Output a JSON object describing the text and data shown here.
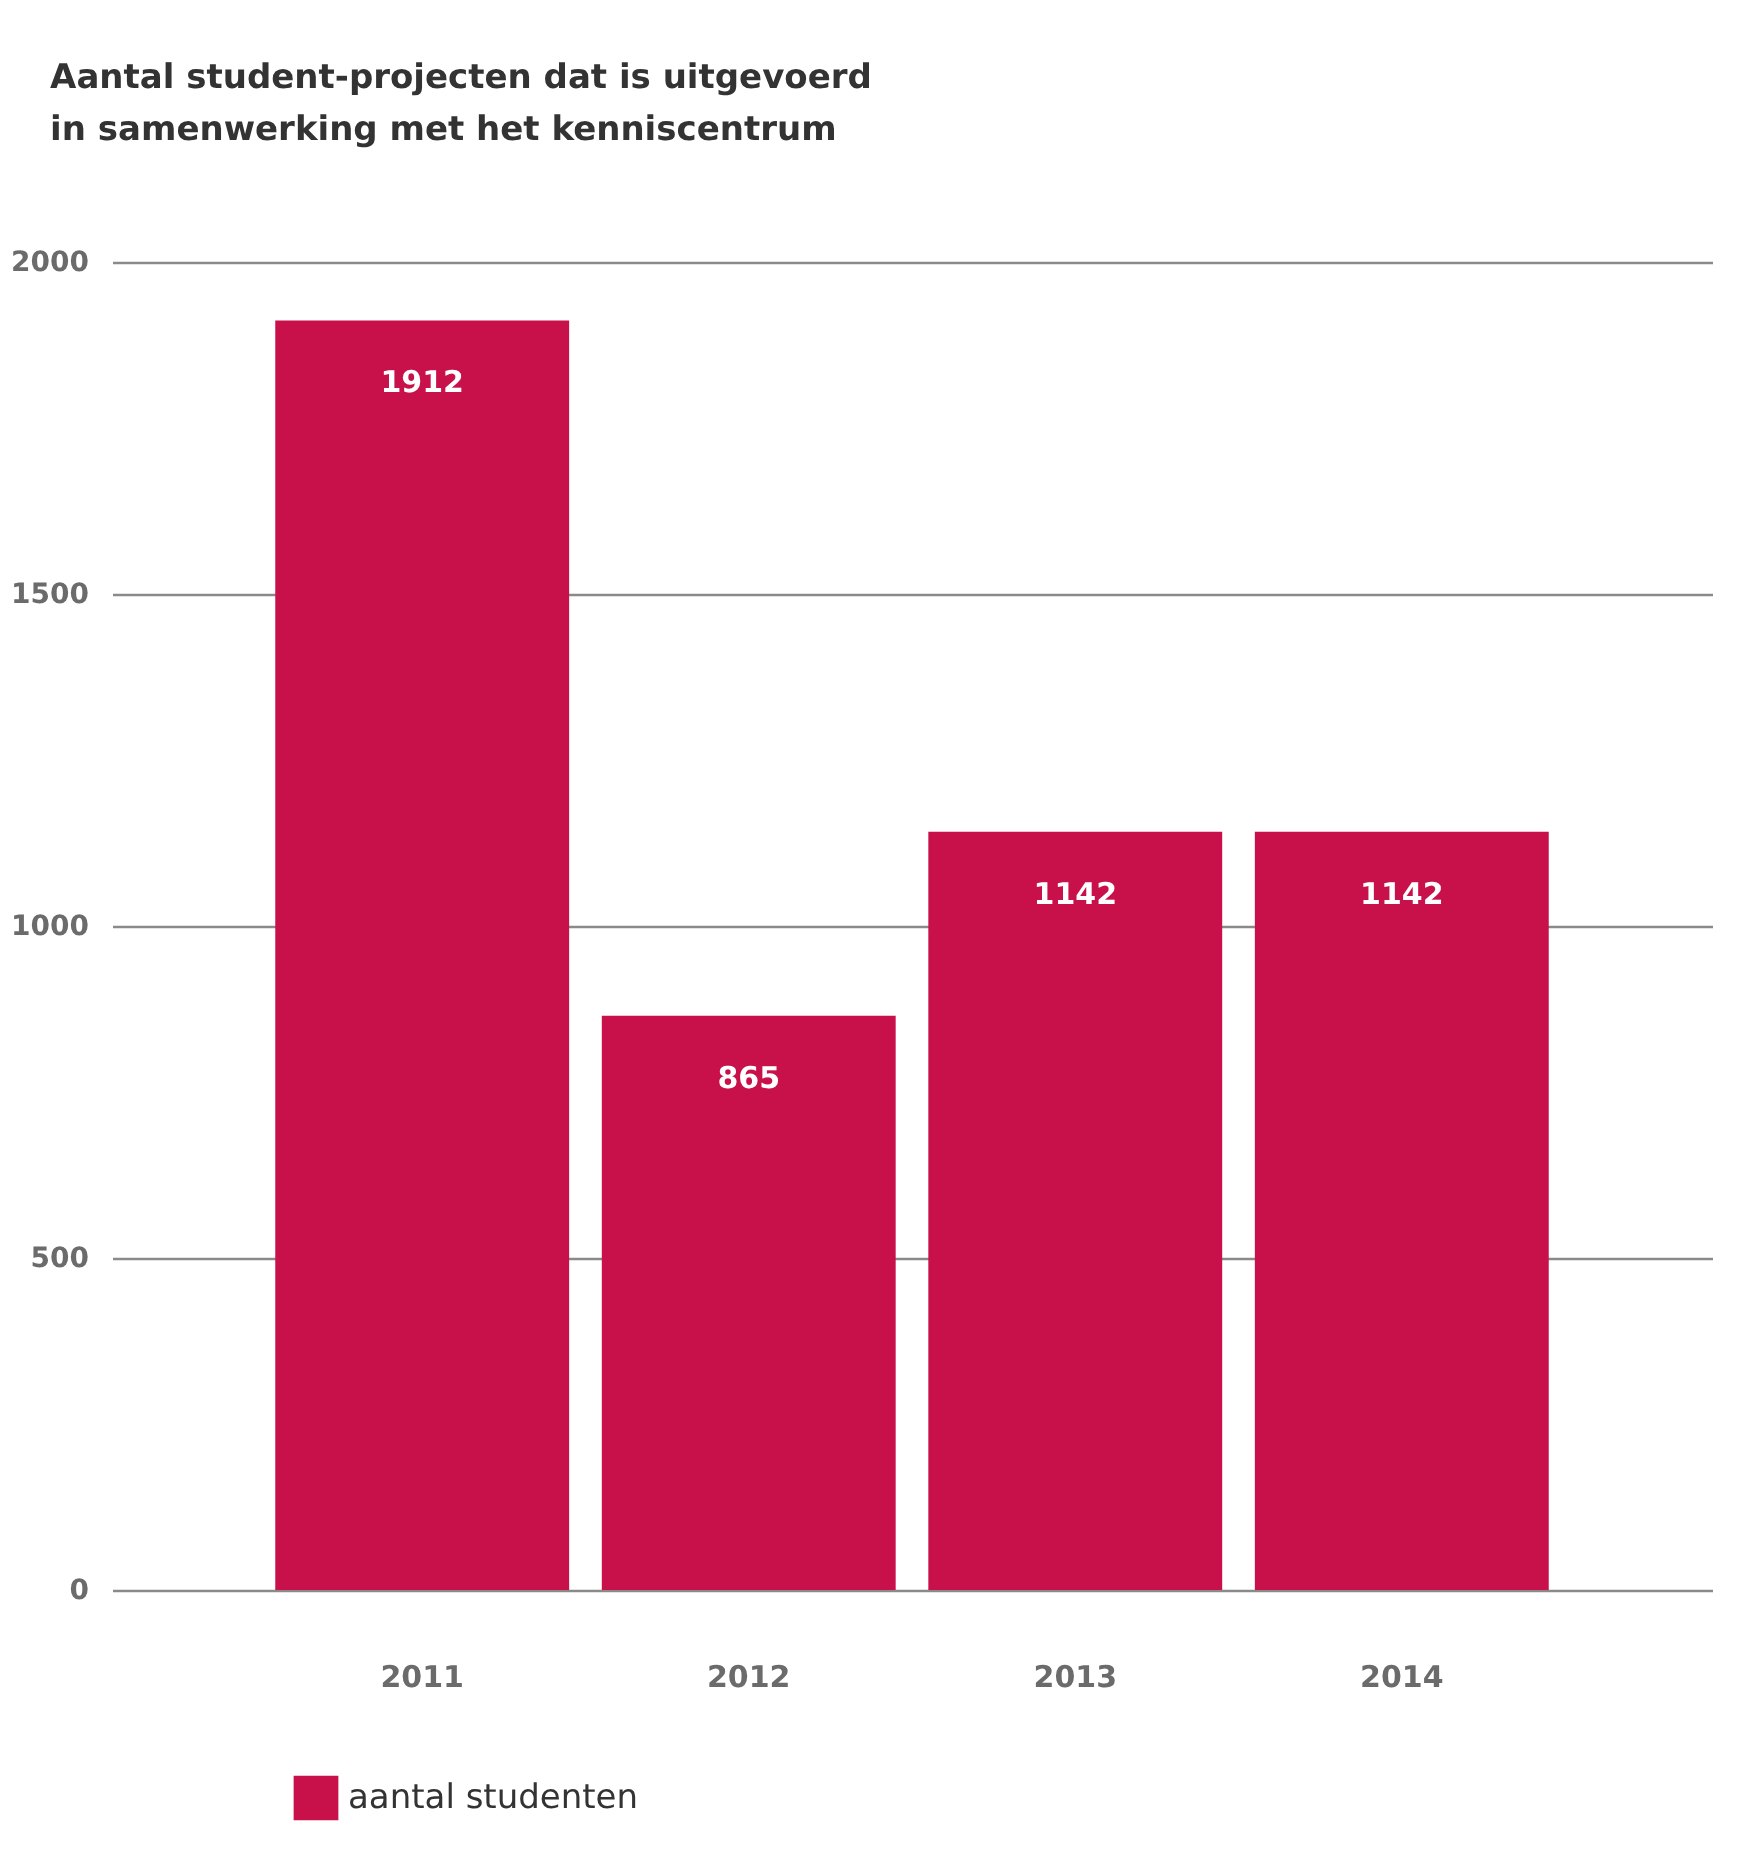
{
  "chart_data": {
    "type": "bar",
    "title": [
      "Aantal student-projecten dat is uitgevoerd",
      "in samenwerking met het kenniscentrum"
    ],
    "categories": [
      "2011",
      "2012",
      "2013",
      "2014"
    ],
    "series": [
      {
        "name": "aantal studenten",
        "color": "#c8104a",
        "values": [
          1912,
          865,
          1142,
          1142
        ]
      }
    ],
    "ylim": [
      0,
      2000
    ],
    "yticks": [
      0,
      500,
      1000,
      1500,
      2000
    ],
    "grid": "y",
    "data_labels": true,
    "legend": "bottom left"
  }
}
